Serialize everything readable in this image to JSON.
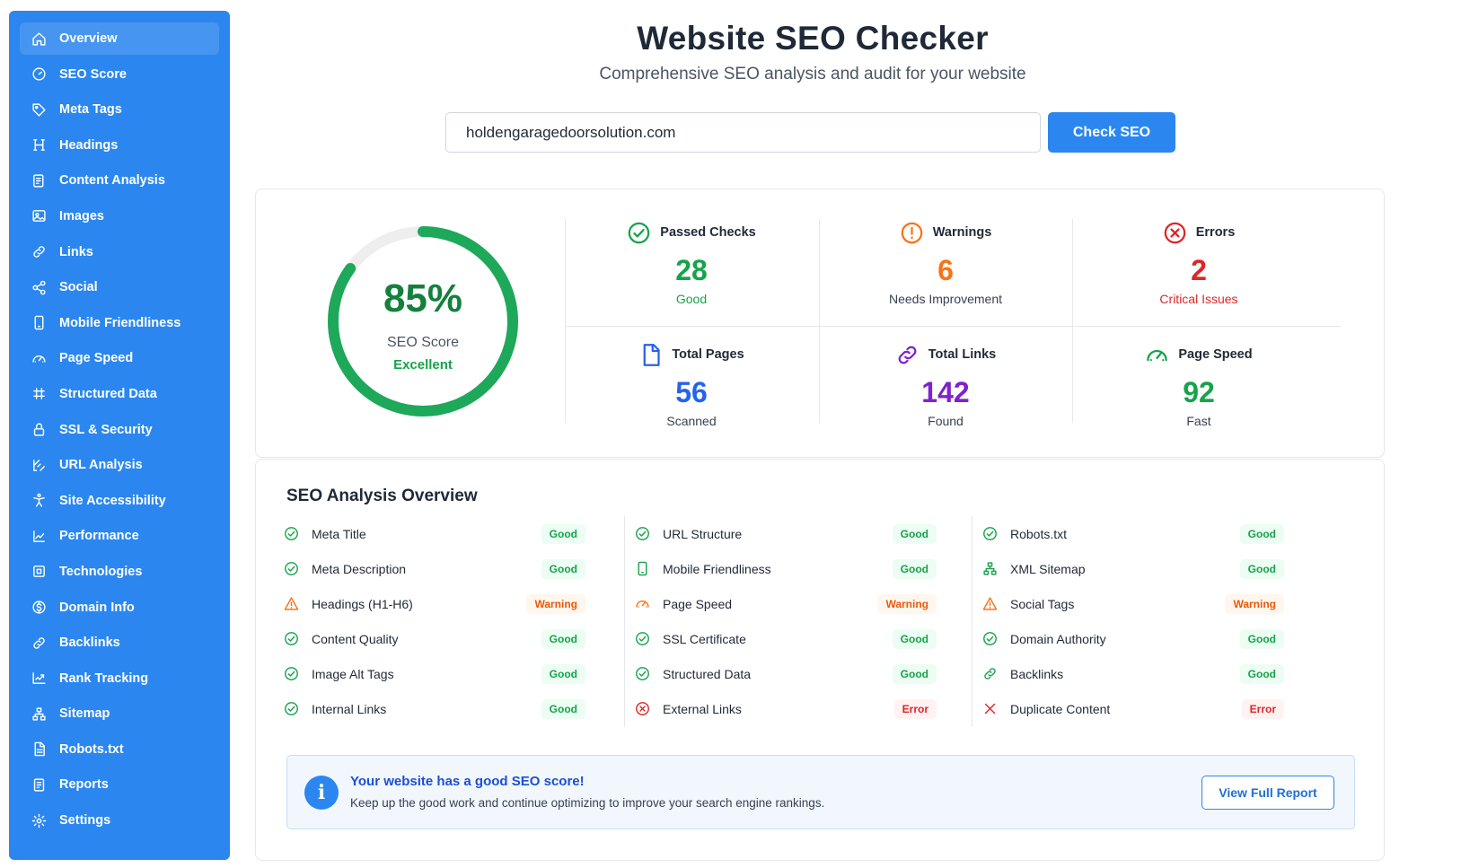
{
  "sidebar": {
    "items": [
      {
        "label": "Overview",
        "icon": "home-icon"
      },
      {
        "label": "SEO Score",
        "icon": "gauge-icon"
      },
      {
        "label": "Meta Tags",
        "icon": "tag-icon"
      },
      {
        "label": "Headings",
        "icon": "heading-icon"
      },
      {
        "label": "Content Analysis",
        "icon": "document-edit-icon"
      },
      {
        "label": "Images",
        "icon": "image-icon"
      },
      {
        "label": "Links",
        "icon": "link-icon"
      },
      {
        "label": "Social",
        "icon": "share-icon"
      },
      {
        "label": "Mobile Friendliness",
        "icon": "mobile-icon"
      },
      {
        "label": "Page Speed",
        "icon": "speedometer-icon"
      },
      {
        "label": "Structured Data",
        "icon": "sitemap-grid-icon"
      },
      {
        "label": "SSL & Security",
        "icon": "lock-icon"
      },
      {
        "label": "URL Analysis",
        "icon": "url-icon"
      },
      {
        "label": "Site Accessibility",
        "icon": "accessibility-icon"
      },
      {
        "label": "Performance",
        "icon": "chart-up-icon"
      },
      {
        "label": "Technologies",
        "icon": "cpu-icon"
      },
      {
        "label": "Domain Info",
        "icon": "dollar-circle-icon"
      },
      {
        "label": "Backlinks",
        "icon": "link-icon"
      },
      {
        "label": "Rank Tracking",
        "icon": "trend-icon"
      },
      {
        "label": "Sitemap",
        "icon": "hierarchy-icon"
      },
      {
        "label": "Robots.txt",
        "icon": "file-text-icon"
      },
      {
        "label": "Reports",
        "icon": "report-icon"
      },
      {
        "label": "Settings",
        "icon": "gear-icon"
      }
    ]
  },
  "header": {
    "title": "Website SEO Checker",
    "subtitle": "Comprehensive SEO analysis and audit for your website"
  },
  "search": {
    "value": "holdengaragedoorsolution.com",
    "button_label": "Check SEO"
  },
  "score": {
    "value": 85,
    "display": "85%",
    "label": "SEO Score",
    "grade": "Excellent"
  },
  "stats": [
    {
      "title": "Passed Checks",
      "value": "28",
      "sub": "Good",
      "icon": "check-circle-icon",
      "color": "#16a34a",
      "sub_color": "#16a34a"
    },
    {
      "title": "Warnings",
      "value": "6",
      "sub": "Needs Improvement",
      "icon": "exclamation-circle-icon",
      "color": "#f97316",
      "sub_color": "#374151"
    },
    {
      "title": "Errors",
      "value": "2",
      "sub": "Critical Issues",
      "icon": "x-circle-icon",
      "color": "#dc2626",
      "sub_color": "#dc2626"
    },
    {
      "title": "Total Pages",
      "value": "56",
      "sub": "Scanned",
      "icon": "file-icon",
      "color": "#2563eb",
      "sub_color": "#374151"
    },
    {
      "title": "Total Links",
      "value": "142",
      "sub": "Found",
      "icon": "link-icon",
      "color": "#7e22ce",
      "sub_color": "#374151"
    },
    {
      "title": "Page Speed",
      "value": "92",
      "sub": "Fast",
      "icon": "speedometer-icon",
      "color": "#16a34a",
      "sub_color": "#374151"
    }
  ],
  "analysis": {
    "title": "SEO Analysis Overview",
    "columns": [
      [
        {
          "label": "Meta Title",
          "status": "Good",
          "icon": "check-circle-icon"
        },
        {
          "label": "Meta Description",
          "status": "Good",
          "icon": "check-circle-icon"
        },
        {
          "label": "Headings (H1-H6)",
          "status": "Warning",
          "icon": "warning-triangle-icon"
        },
        {
          "label": "Content Quality",
          "status": "Good",
          "icon": "check-circle-icon"
        },
        {
          "label": "Image Alt Tags",
          "status": "Good",
          "icon": "check-circle-icon"
        },
        {
          "label": "Internal Links",
          "status": "Good",
          "icon": "check-circle-icon"
        }
      ],
      [
        {
          "label": "URL Structure",
          "status": "Good",
          "icon": "check-circle-icon"
        },
        {
          "label": "Mobile Friendliness",
          "status": "Good",
          "icon": "mobile-icon"
        },
        {
          "label": "Page Speed",
          "status": "Warning",
          "icon": "speedometer-icon"
        },
        {
          "label": "SSL Certificate",
          "status": "Good",
          "icon": "check-circle-icon"
        },
        {
          "label": "Structured Data",
          "status": "Good",
          "icon": "check-circle-icon"
        },
        {
          "label": "External Links",
          "status": "Error",
          "icon": "x-circle-icon"
        }
      ],
      [
        {
          "label": "Robots.txt",
          "status": "Good",
          "icon": "check-circle-icon"
        },
        {
          "label": "XML Sitemap",
          "status": "Good",
          "icon": "hierarchy-icon"
        },
        {
          "label": "Social Tags",
          "status": "Warning",
          "icon": "warning-triangle-icon"
        },
        {
          "label": "Domain Authority",
          "status": "Good",
          "icon": "check-circle-icon"
        },
        {
          "label": "Backlinks",
          "status": "Good",
          "icon": "link-icon"
        },
        {
          "label": "Duplicate Content",
          "status": "Error",
          "icon": "x-icon"
        }
      ]
    ]
  },
  "info": {
    "title": "Your website has a good SEO score!",
    "text": "Keep up the good work and continue optimizing to improve your search engine rankings.",
    "button_label": "View Full Report"
  },
  "colors": {
    "accent": "#2b87ef",
    "good": "#16a34a",
    "warning": "#f97316",
    "error": "#dc2626"
  }
}
